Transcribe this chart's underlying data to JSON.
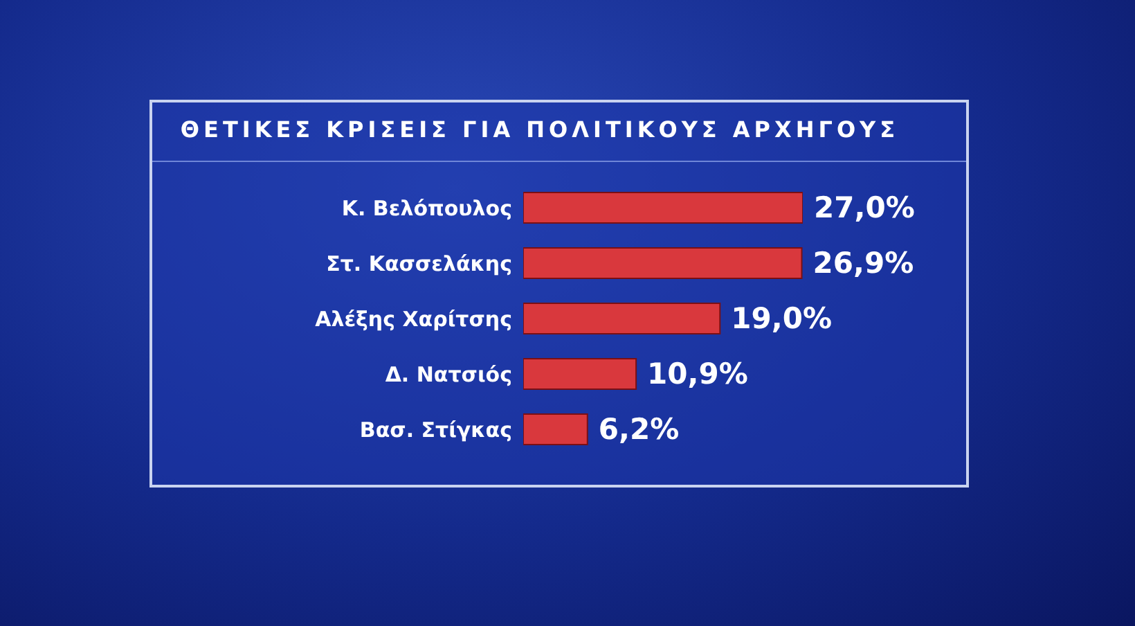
{
  "chart_data": {
    "type": "bar",
    "orientation": "horizontal",
    "title": "ΘΕΤΙΚΕΣ ΚΡΙΣΕΙΣ ΓΙΑ ΠΟΛΙΤΙΚΟΥΣ ΑΡΧΗΓΟΥΣ",
    "categories": [
      "Κ. Βελόπουλος",
      "Στ. Κασσελάκης",
      "Αλέξης Χαρίτσης",
      "Δ. Νατσιός",
      "Βασ. Στίγκας"
    ],
    "values": [
      27.0,
      26.9,
      19.0,
      10.9,
      6.2
    ],
    "value_labels": [
      "27,0%",
      "26,9%",
      "19,0%",
      "10,9%",
      "6,2%"
    ],
    "color": "#d9383d"
  }
}
